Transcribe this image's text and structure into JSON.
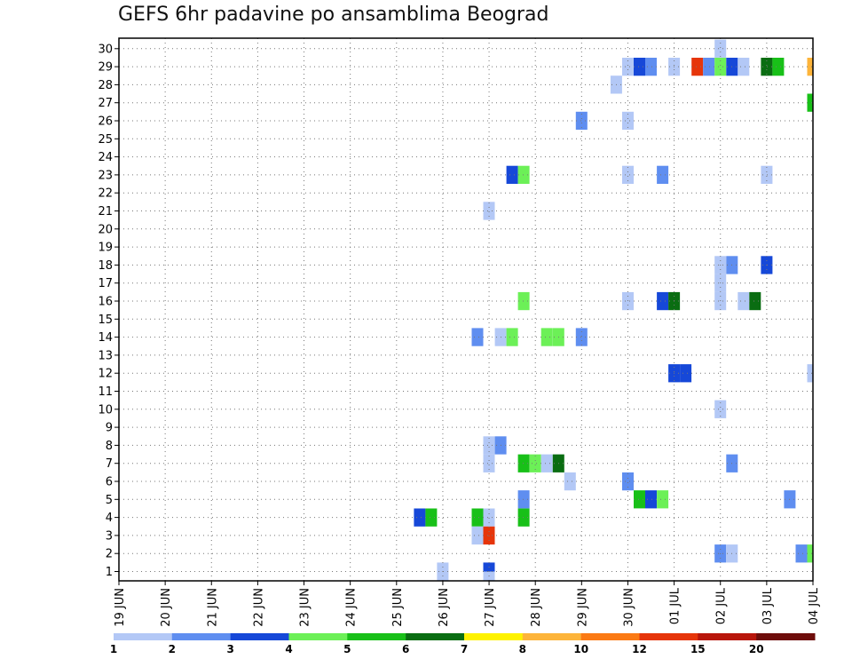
{
  "chart_data": {
    "type": "heatmap",
    "title": "GEFS 6hr padavine po ansamblima Beograd",
    "x_ticks": [
      "19 JUN",
      "20 JUN",
      "21 JUN",
      "22 JUN",
      "23 JUN",
      "24 JUN",
      "25 JUN",
      "26 JUN",
      "27 JUN",
      "28 JUN",
      "29 JUN",
      "30 JUN",
      "01 JUL",
      "02 JUL",
      "03 JUL",
      "04 JUL"
    ],
    "x_unit": "6-hour step",
    "y_ticks": [
      1,
      2,
      3,
      4,
      5,
      6,
      7,
      8,
      9,
      10,
      11,
      12,
      13,
      14,
      15,
      16,
      17,
      18,
      19,
      20,
      21,
      22,
      23,
      24,
      25,
      26,
      27,
      28,
      29,
      30
    ],
    "ylim": [
      0,
      30.5
    ],
    "grid": true,
    "colorbar": {
      "labels": [
        "1",
        "2",
        "3",
        "4",
        "5",
        "6",
        "7",
        "8",
        "10",
        "12",
        "15",
        "20"
      ],
      "colors": [
        "#b3c8f6",
        "#5f8ef0",
        "#1648d8",
        "#6cf057",
        "#18c018",
        "#0a6d12",
        "#fef200",
        "#fdb43a",
        "#fb7a14",
        "#e6350a",
        "#b8160b",
        "#6e0d0b"
      ]
    },
    "cells": [
      {
        "day": "30 JUN",
        "step": 0,
        "member": 29,
        "color": "#b3c8f6"
      },
      {
        "day": "30 JUN",
        "step": 1,
        "member": 29,
        "color": "#1648d8"
      },
      {
        "day": "30 JUN",
        "step": 2,
        "member": 29,
        "color": "#5f8ef0"
      },
      {
        "day": "01 JUL",
        "step": 0,
        "member": 29,
        "color": "#b3c8f6"
      },
      {
        "day": "01 JUL",
        "step": 2,
        "member": 29,
        "color": "#e6350a"
      },
      {
        "day": "01 JUL",
        "step": 3,
        "member": 29,
        "color": "#5f8ef0"
      },
      {
        "day": "02 JUL",
        "step": 0,
        "member": 29,
        "color": "#6cf057"
      },
      {
        "day": "02 JUL",
        "step": 1,
        "member": 29,
        "color": "#1648d8"
      },
      {
        "day": "02 JUL",
        "step": 2,
        "member": 29,
        "color": "#b3c8f6"
      },
      {
        "day": "03 JUL",
        "step": 0,
        "member": 29,
        "color": "#0a6d12"
      },
      {
        "day": "03 JUL",
        "step": 1,
        "member": 29,
        "color": "#18c018"
      },
      {
        "day": "03 JUL",
        "step": 4,
        "member": 29,
        "color": "#fdb43a"
      },
      {
        "day": "02 JUL",
        "step": 0,
        "member": 30,
        "color": "#b3c8f6"
      },
      {
        "day": "29 JUN",
        "step": 3,
        "member": 28,
        "color": "#b3c8f6"
      },
      {
        "day": "03 JUL",
        "step": 4,
        "member": 27,
        "color": "#18c018"
      },
      {
        "day": "28 JUN",
        "step": 4,
        "member": 26,
        "color": "#5f8ef0"
      },
      {
        "day": "30 JUN",
        "step": 0,
        "member": 26,
        "color": "#b3c8f6"
      },
      {
        "day": "27 JUN",
        "step": 2,
        "member": 23,
        "color": "#1648d8"
      },
      {
        "day": "27 JUN",
        "step": 3,
        "member": 23,
        "color": "#6cf057"
      },
      {
        "day": "30 JUN",
        "step": 0,
        "member": 23,
        "color": "#b3c8f6"
      },
      {
        "day": "30 JUN",
        "step": 3,
        "member": 23,
        "color": "#5f8ef0"
      },
      {
        "day": "02 JUL",
        "step": 4,
        "member": 23,
        "color": "#b3c8f6"
      },
      {
        "day": "27 JUN",
        "step": 0,
        "member": 21,
        "color": "#b3c8f6"
      },
      {
        "day": "02 JUL",
        "step": 0,
        "member": 18,
        "color": "#b3c8f6"
      },
      {
        "day": "02 JUL",
        "step": 1,
        "member": 18,
        "color": "#5f8ef0"
      },
      {
        "day": "03 JUL",
        "step": 0,
        "member": 18,
        "color": "#1648d8"
      },
      {
        "day": "02 JUL",
        "step": 0,
        "member": 17,
        "color": "#b3c8f6"
      },
      {
        "day": "27 JUN",
        "step": 3,
        "member": 16,
        "color": "#6cf057"
      },
      {
        "day": "30 JUN",
        "step": 0,
        "member": 16,
        "color": "#b3c8f6"
      },
      {
        "day": "30 JUN",
        "step": 3,
        "member": 16,
        "color": "#1648d8"
      },
      {
        "day": "01 JUL",
        "step": 0,
        "member": 16,
        "color": "#0a6d12"
      },
      {
        "day": "02 JUL",
        "step": 0,
        "member": 16,
        "color": "#b3c8f6"
      },
      {
        "day": "02 JUL",
        "step": 2,
        "member": 16,
        "color": "#b3c8f6"
      },
      {
        "day": "02 JUL",
        "step": 3,
        "member": 16,
        "color": "#0a6d12"
      },
      {
        "day": "26 JUN",
        "step": 3,
        "member": 14,
        "color": "#5f8ef0"
      },
      {
        "day": "27 JUN",
        "step": 1,
        "member": 14,
        "color": "#b3c8f6"
      },
      {
        "day": "27 JUN",
        "step": 2,
        "member": 14,
        "color": "#6cf057"
      },
      {
        "day": "28 JUN",
        "step": 1,
        "member": 14,
        "color": "#6cf057"
      },
      {
        "day": "28 JUN",
        "step": 2,
        "member": 14,
        "color": "#6cf057"
      },
      {
        "day": "29 JUN",
        "step": 0,
        "member": 14,
        "color": "#5f8ef0"
      },
      {
        "day": "01 JUL",
        "step": 0,
        "member": 12,
        "color": "#1648d8"
      },
      {
        "day": "01 JUL",
        "step": 1,
        "member": 12,
        "color": "#1648d8"
      },
      {
        "day": "03 JUL",
        "step": 4,
        "member": 12,
        "color": "#b3c8f6"
      },
      {
        "day": "02 JUL",
        "step": 0,
        "member": 10,
        "color": "#b3c8f6"
      },
      {
        "day": "27 JUN",
        "step": 0,
        "member": 8,
        "color": "#b3c8f6"
      },
      {
        "day": "27 JUN",
        "step": 1,
        "member": 8,
        "color": "#5f8ef0"
      },
      {
        "day": "27 JUN",
        "step": 0,
        "member": 7,
        "color": "#b3c8f6"
      },
      {
        "day": "27 JUN",
        "step": 3,
        "member": 7,
        "color": "#18c018"
      },
      {
        "day": "28 JUN",
        "step": 0,
        "member": 7,
        "color": "#6cf057"
      },
      {
        "day": "28 JUN",
        "step": 1,
        "member": 7,
        "color": "#b3c8f6"
      },
      {
        "day": "28 JUN",
        "step": 2,
        "member": 7,
        "color": "#0a6d12"
      },
      {
        "day": "02 JUL",
        "step": 1,
        "member": 7,
        "color": "#5f8ef0"
      },
      {
        "day": "28 JUN",
        "step": 3,
        "member": 6,
        "color": "#b3c8f6"
      },
      {
        "day": "30 JUN",
        "step": 0,
        "member": 6,
        "color": "#5f8ef0"
      },
      {
        "day": "27 JUN",
        "step": 3,
        "member": 5,
        "color": "#5f8ef0"
      },
      {
        "day": "30 JUN",
        "step": 1,
        "member": 5,
        "color": "#18c018"
      },
      {
        "day": "30 JUN",
        "step": 2,
        "member": 5,
        "color": "#1648d8"
      },
      {
        "day": "30 JUN",
        "step": 3,
        "member": 5,
        "color": "#6cf057"
      },
      {
        "day": "03 JUL",
        "step": 2,
        "member": 5,
        "color": "#5f8ef0"
      },
      {
        "day": "25 JUN",
        "step": 2,
        "member": 4,
        "color": "#1648d8"
      },
      {
        "day": "25 JUN",
        "step": 3,
        "member": 4,
        "color": "#18c018"
      },
      {
        "day": "26 JUN",
        "step": 3,
        "member": 4,
        "color": "#18c018"
      },
      {
        "day": "27 JUN",
        "step": 0,
        "member": 4,
        "color": "#b3c8f6"
      },
      {
        "day": "27 JUN",
        "step": 3,
        "member": 4,
        "color": "#18c018"
      },
      {
        "day": "26 JUN",
        "step": 3,
        "member": 3,
        "color": "#b3c8f6"
      },
      {
        "day": "27 JUN",
        "step": 0,
        "member": 3,
        "color": "#e6350a"
      },
      {
        "day": "02 JUL",
        "step": 0,
        "member": 2,
        "color": "#5f8ef0"
      },
      {
        "day": "02 JUL",
        "step": 1,
        "member": 2,
        "color": "#b3c8f6"
      },
      {
        "day": "03 JUL",
        "step": 3,
        "member": 2,
        "color": "#5f8ef0"
      },
      {
        "day": "03 JUL",
        "step": 4,
        "member": 2,
        "color": "#6cf057"
      },
      {
        "day": "26 JUN",
        "step": 0,
        "member": 1,
        "color": "#b3c8f6"
      },
      {
        "day": "27 JUN",
        "step": 0,
        "member": 1,
        "color": "#1648d8"
      },
      {
        "day": "27 JUN",
        "step": 0,
        "member": 0.5,
        "color": "#b3c8f6"
      }
    ]
  }
}
